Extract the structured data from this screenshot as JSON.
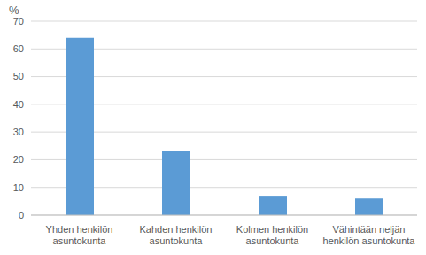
{
  "chart_data": {
    "type": "bar",
    "y_label": "%",
    "categories": [
      "Yhden henkilön asuntokunta",
      "Kahden henkilön asuntokunta",
      "Kolmen henkilön asuntokunta",
      "Vähintään neljän henkilön asuntokunta"
    ],
    "values": [
      64,
      23,
      7,
      6
    ],
    "color": "#5b9bd5",
    "ylim": [
      0,
      70
    ],
    "yticks": [
      0,
      10,
      20,
      30,
      40,
      50,
      60,
      70
    ],
    "grid": true
  }
}
